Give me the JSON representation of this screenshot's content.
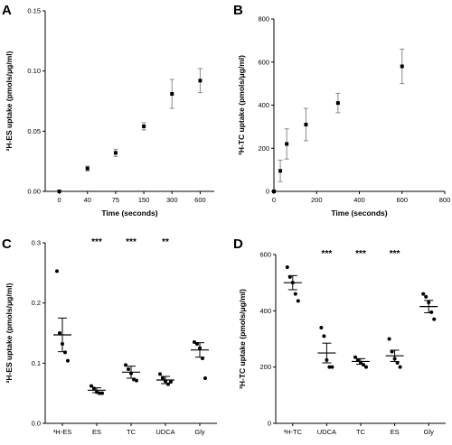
{
  "figure": {
    "panels": [
      {
        "letter": "A"
      },
      {
        "letter": "B"
      },
      {
        "letter": "C"
      },
      {
        "letter": "D"
      }
    ]
  },
  "chart_data": [
    {
      "panel": "A",
      "type": "scatter",
      "xlabel": "Time (seconds)",
      "ylabel": "³H-ES uptake (pmols/μg/ml)",
      "categories": [
        "0",
        "40",
        "75",
        "150",
        "300",
        "600"
      ],
      "y_ticks": [
        "0.00",
        "0.05",
        "0.10",
        "0.15"
      ],
      "ylim": [
        0,
        0.15
      ],
      "series": [
        {
          "values": [
            0.0,
            0.019,
            0.032,
            0.054,
            0.081,
            0.092
          ],
          "errors": [
            0.0,
            0.002,
            0.003,
            0.003,
            0.012,
            0.01
          ]
        }
      ],
      "grid": false
    },
    {
      "panel": "B",
      "type": "scatter",
      "xlabel": "Time (seconds)",
      "ylabel": "³H-TC uptake (pmols/μg/ml)",
      "x_ticks": [
        "0",
        "200",
        "400",
        "600",
        "800"
      ],
      "y_ticks": [
        "0",
        "200",
        "400",
        "600",
        "800"
      ],
      "xlim": [
        0,
        800
      ],
      "ylim": [
        0,
        800
      ],
      "series": [
        {
          "x": [
            0,
            30,
            60,
            150,
            300,
            600
          ],
          "values": [
            0,
            95,
            220,
            310,
            410,
            580
          ],
          "errors": [
            0,
            50,
            70,
            75,
            45,
            80
          ]
        }
      ],
      "grid": false
    },
    {
      "panel": "C",
      "type": "scatter",
      "xlabel": "",
      "ylabel": "³H-ES uptake (pmols/μg/ml)",
      "categories": [
        "³H-ES",
        "ES",
        "TC",
        "UDCA",
        "Gly"
      ],
      "y_ticks": [
        "0.0",
        "0.1",
        "0.2",
        "0.3"
      ],
      "ylim": [
        0,
        0.3
      ],
      "means": [
        0.147,
        0.055,
        0.085,
        0.072,
        0.122
      ],
      "errors": [
        0.028,
        0.004,
        0.01,
        0.006,
        0.012
      ],
      "points": [
        [
          0.253,
          0.15,
          0.132,
          0.118,
          0.104
        ],
        [
          0.062,
          0.058,
          0.052,
          0.05,
          0.05
        ],
        [
          0.097,
          0.09,
          0.083,
          0.073,
          0.071
        ],
        [
          0.082,
          0.075,
          0.07,
          0.065,
          0.069
        ],
        [
          0.135,
          0.132,
          0.125,
          0.108,
          0.075
        ]
      ],
      "significance": [
        "",
        "***",
        "***",
        "**",
        ""
      ],
      "grid": false
    },
    {
      "panel": "D",
      "type": "scatter",
      "xlabel": "",
      "ylabel": "³H-TC uptake (pmols/μg/ml)",
      "categories": [
        "³H-TC",
        "UDCA",
        "TC",
        "ES",
        "Gly"
      ],
      "y_ticks": [
        "0",
        "200",
        "400",
        "600"
      ],
      "ylim": [
        0,
        600
      ],
      "means": [
        500,
        250,
        220,
        240,
        415
      ],
      "errors": [
        25,
        35,
        10,
        20,
        22
      ],
      "points": [
        [
          555,
          520,
          500,
          460,
          435
        ],
        [
          340,
          310,
          225,
          200,
          200
        ],
        [
          235,
          225,
          215,
          208,
          200
        ],
        [
          300,
          255,
          230,
          215,
          200
        ],
        [
          460,
          450,
          430,
          395,
          370
        ]
      ],
      "significance": [
        "",
        "***",
        "***",
        "***",
        ""
      ],
      "grid": false
    }
  ]
}
